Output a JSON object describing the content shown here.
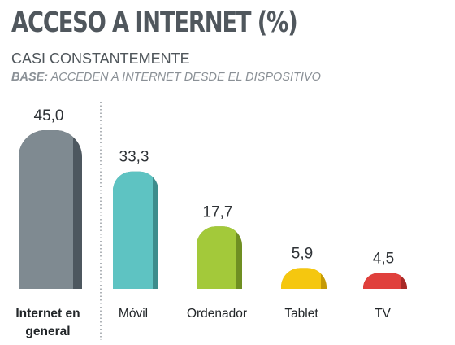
{
  "header": {
    "title": "ACCESO A INTERNET (%)",
    "subtitle": "CASI CONSTANTEMENTE",
    "base_label": "BASE:",
    "base_text": " ACCEDEN A INTERNET DESDE EL DISPOSITIVO"
  },
  "chart_data": {
    "type": "bar",
    "categories": [
      "Internet en general",
      "Móvil",
      "Ordenador",
      "Tablet",
      "TV"
    ],
    "category_lines": [
      [
        "Internet en",
        "general"
      ],
      [
        "Móvil"
      ],
      [
        "Ordenador"
      ],
      [
        "Tablet"
      ],
      [
        "TV"
      ]
    ],
    "values": [
      45.0,
      33.3,
      17.7,
      5.9,
      4.5
    ],
    "value_labels": [
      "45,0",
      "33,3",
      "17,7",
      "5,9",
      "4,5"
    ],
    "colors": [
      "#7f8a91",
      "#5ec3c2",
      "#a3c93a",
      "#f5c70f",
      "#e0403c"
    ],
    "side_colors": [
      "#4d575f",
      "#3d8d8c",
      "#6f8f22",
      "#c59a06",
      "#a82a27"
    ],
    "bold_categories": [
      true,
      false,
      false,
      false,
      false
    ],
    "ylim": [
      0,
      45
    ],
    "separator_after_first": true
  }
}
